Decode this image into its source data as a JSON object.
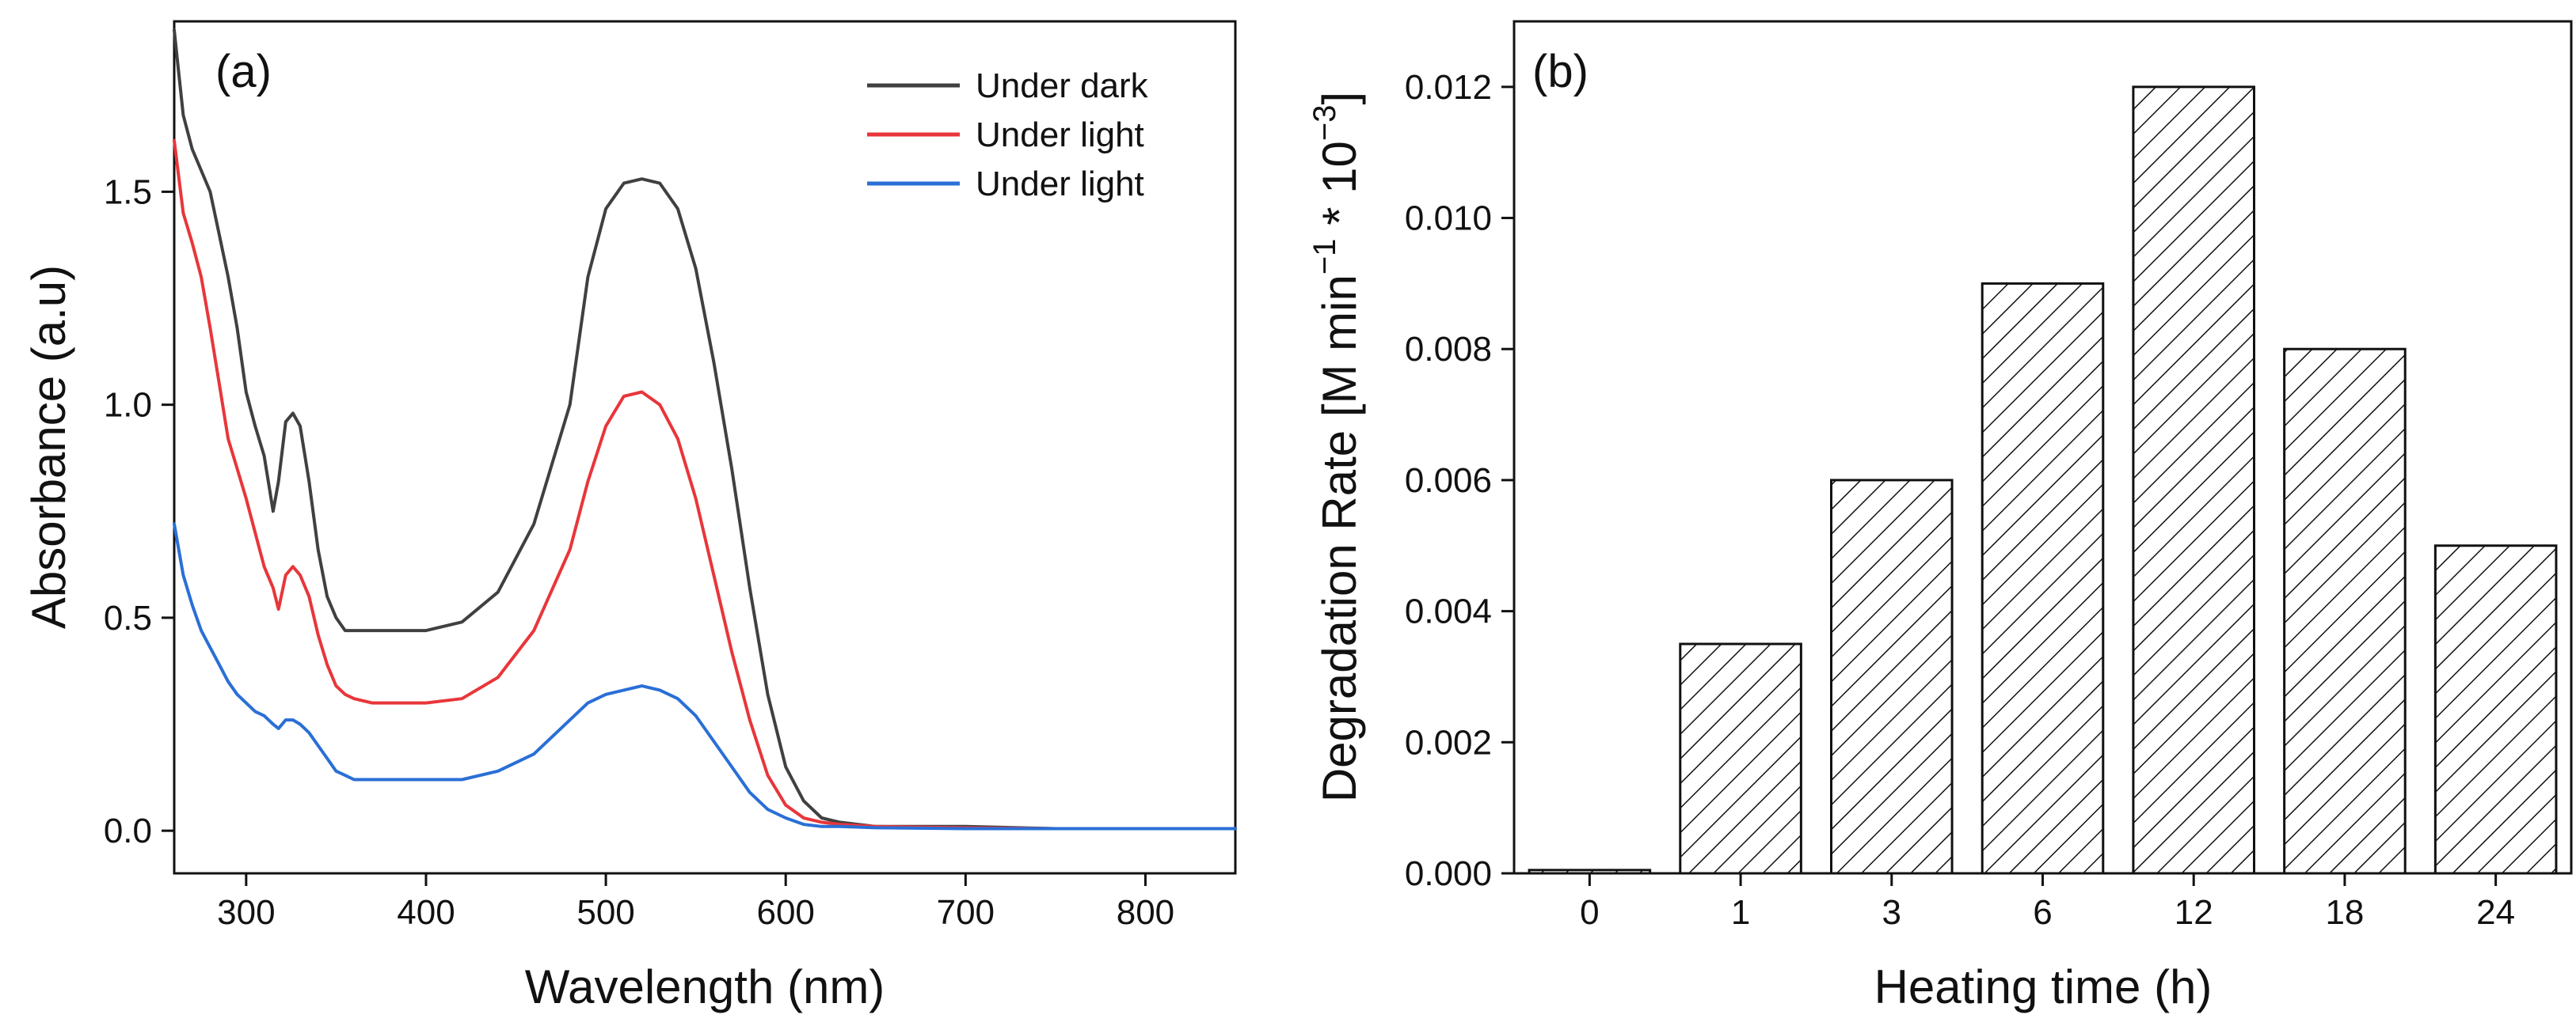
{
  "chart_data": [
    {
      "type": "line",
      "panel_label": "(a)",
      "xlabel": "Wavelength (nm)",
      "ylabel": "Absorbance (a.u)",
      "xlim": [
        260,
        850
      ],
      "ylim": [
        -0.1,
        1.9
      ],
      "x_ticks": [
        300,
        400,
        500,
        600,
        700,
        800
      ],
      "y_ticks": [
        0.0,
        0.5,
        1.0,
        1.5
      ],
      "y_tick_labels": [
        "0.0",
        "0.5",
        "1.0",
        "1.5"
      ],
      "legend_position": "top-right",
      "series": [
        {
          "name": "Under dark",
          "color": "#404040",
          "x": [
            260,
            262,
            265,
            270,
            275,
            280,
            285,
            290,
            295,
            300,
            305,
            310,
            315,
            318,
            322,
            326,
            330,
            335,
            340,
            345,
            350,
            355,
            360,
            370,
            380,
            400,
            420,
            440,
            460,
            480,
            490,
            500,
            510,
            520,
            530,
            540,
            550,
            560,
            570,
            580,
            590,
            600,
            610,
            620,
            630,
            650,
            700,
            750,
            800,
            850
          ],
          "values": [
            1.88,
            1.8,
            1.68,
            1.6,
            1.55,
            1.5,
            1.4,
            1.3,
            1.18,
            1.03,
            0.95,
            0.88,
            0.75,
            0.82,
            0.96,
            0.98,
            0.95,
            0.82,
            0.66,
            0.55,
            0.5,
            0.47,
            0.47,
            0.47,
            0.47,
            0.47,
            0.49,
            0.56,
            0.72,
            1.0,
            1.3,
            1.46,
            1.52,
            1.53,
            1.52,
            1.46,
            1.32,
            1.1,
            0.85,
            0.57,
            0.32,
            0.15,
            0.07,
            0.03,
            0.02,
            0.01,
            0.01,
            0.005,
            0.005,
            0.005
          ]
        },
        {
          "name": "Under light",
          "color": "#e8363a",
          "x": [
            260,
            265,
            270,
            275,
            280,
            285,
            290,
            295,
            300,
            305,
            310,
            315,
            318,
            322,
            326,
            330,
            335,
            340,
            345,
            350,
            355,
            360,
            370,
            380,
            400,
            420,
            440,
            460,
            480,
            490,
            500,
            510,
            520,
            530,
            540,
            550,
            560,
            570,
            580,
            590,
            600,
            610,
            620,
            630,
            650,
            700,
            750,
            800,
            850
          ],
          "values": [
            1.62,
            1.45,
            1.38,
            1.3,
            1.18,
            1.05,
            0.92,
            0.85,
            0.78,
            0.7,
            0.62,
            0.57,
            0.52,
            0.6,
            0.62,
            0.6,
            0.55,
            0.46,
            0.39,
            0.34,
            0.32,
            0.31,
            0.3,
            0.3,
            0.3,
            0.31,
            0.36,
            0.47,
            0.66,
            0.82,
            0.95,
            1.02,
            1.03,
            1.0,
            0.92,
            0.78,
            0.6,
            0.42,
            0.26,
            0.13,
            0.06,
            0.03,
            0.02,
            0.015,
            0.01,
            0.007,
            0.005,
            0.005,
            0.005
          ]
        },
        {
          "name": "Under light",
          "color": "#2a6fd6",
          "x": [
            260,
            265,
            270,
            275,
            280,
            285,
            290,
            295,
            300,
            305,
            310,
            315,
            318,
            322,
            326,
            330,
            335,
            340,
            345,
            350,
            355,
            360,
            370,
            380,
            400,
            420,
            440,
            460,
            480,
            490,
            500,
            510,
            520,
            530,
            540,
            550,
            560,
            570,
            580,
            590,
            600,
            610,
            620,
            630,
            650,
            700,
            750,
            800,
            850
          ],
          "values": [
            0.72,
            0.6,
            0.53,
            0.47,
            0.43,
            0.39,
            0.35,
            0.32,
            0.3,
            0.28,
            0.27,
            0.25,
            0.24,
            0.26,
            0.26,
            0.25,
            0.23,
            0.2,
            0.17,
            0.14,
            0.13,
            0.12,
            0.12,
            0.12,
            0.12,
            0.12,
            0.14,
            0.18,
            0.26,
            0.3,
            0.32,
            0.33,
            0.34,
            0.33,
            0.31,
            0.27,
            0.21,
            0.15,
            0.09,
            0.05,
            0.03,
            0.015,
            0.01,
            0.01,
            0.007,
            0.005,
            0.005,
            0.005,
            0.005
          ]
        }
      ]
    },
    {
      "type": "bar",
      "panel_label": "(b)",
      "xlabel": "Heating time (h)",
      "ylabel_main": "Degradation Rate [M min",
      "ylabel_sup1": "−1",
      "ylabel_mid": " * 10",
      "ylabel_sup2": "−3",
      "ylabel_end": "]",
      "categories": [
        "0",
        "1",
        "3",
        "6",
        "12",
        "18",
        "24"
      ],
      "values": [
        5e-05,
        0.0035,
        0.006,
        0.009,
        0.012,
        0.008,
        0.005
      ],
      "ylim": [
        0,
        0.013
      ],
      "y_ticks": [
        0.0,
        0.002,
        0.004,
        0.006,
        0.008,
        0.01,
        0.012
      ],
      "y_tick_labels": [
        "0.000",
        "0.002",
        "0.004",
        "0.006",
        "0.008",
        "0.010",
        "0.012"
      ],
      "bar_fill": "diagonal hatch"
    }
  ]
}
